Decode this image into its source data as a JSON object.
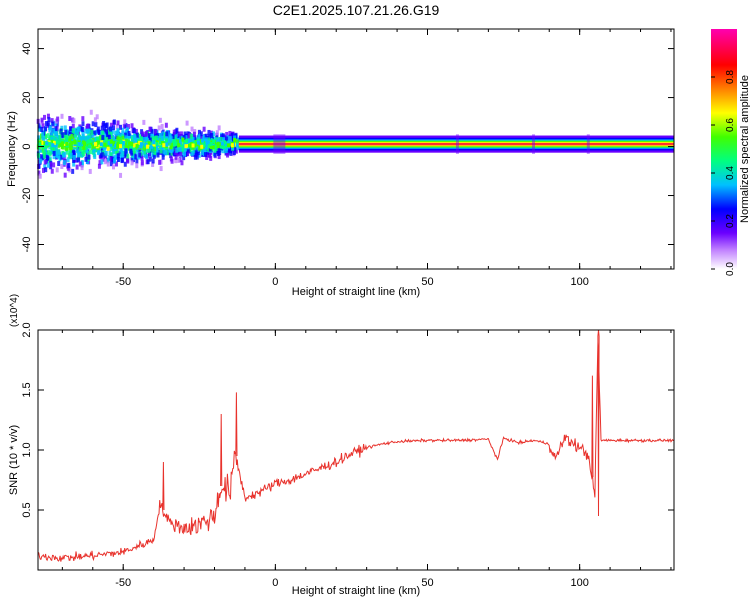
{
  "title": "C2E1.2025.107.21.26.G19",
  "colors": {
    "snr_line": "#e8322c",
    "tone_line": "#e03030",
    "axis": "#000000",
    "background": "#ffffff"
  },
  "chart_data": [
    {
      "type": "heatmap",
      "name": "spectrogram",
      "xlabel": "Height of straight line (km)",
      "ylabel": "Frequency (Hz)",
      "xlim": [
        -78,
        131
      ],
      "ylim": [
        -50,
        48
      ],
      "x_ticks": [
        -50,
        0,
        50,
        100
      ],
      "y_ticks": [
        -40,
        -20,
        0,
        20,
        40
      ],
      "x_tick_labels": [
        "-50",
        "0",
        "50",
        "100"
      ],
      "y_tick_labels": [
        "-40",
        "-20",
        "0",
        "20",
        "40"
      ],
      "tone_frequency_hz": 1,
      "tone_segments": [
        [
          -12,
          131
        ]
      ],
      "scatter_region_km": [
        -78,
        -12
      ],
      "colorbar": {
        "label": "Normalized spectral amplitude",
        "range": [
          0,
          1
        ],
        "ticks": [
          0.0,
          0.2,
          0.4,
          0.6,
          0.8
        ],
        "tick_labels": [
          "0.0",
          "0.2",
          "0.4",
          "0.6",
          "0.8"
        ],
        "colormap": [
          "#ffffff",
          "#c080ff",
          "#6a00ff",
          "#0000ff",
          "#00c0ff",
          "#00ff80",
          "#40ff00",
          "#ffff00",
          "#ff8000",
          "#ff0000",
          "#ff00b0"
        ]
      }
    },
    {
      "type": "line",
      "name": "snr",
      "xlabel": "Height of straight line (km)",
      "ylabel": "SNR (10 * v/v)",
      "y_multiplier": "(x10^4)",
      "xlim": [
        -78,
        131
      ],
      "ylim": [
        0,
        2.0
      ],
      "x_ticks": [
        -50,
        0,
        50,
        100
      ],
      "y_ticks": [
        0.5,
        1.0,
        1.5,
        2.0
      ],
      "x_tick_labels": [
        "-50",
        "0",
        "50",
        "100"
      ],
      "y_tick_labels": [
        "0.5",
        "1.0",
        "1.5",
        "2.0"
      ],
      "x": [
        -78,
        -70,
        -60,
        -50,
        -45,
        -40,
        -38,
        -35,
        -30,
        -25,
        -20,
        -18,
        -15,
        -13,
        -10,
        -5,
        0,
        5,
        10,
        15,
        20,
        25,
        30,
        35,
        40,
        50,
        60,
        70,
        73,
        75,
        80,
        85,
        90,
        92,
        95,
        100,
        103,
        105,
        106,
        107,
        110,
        120,
        131
      ],
      "y": [
        0.12,
        0.1,
        0.12,
        0.15,
        0.2,
        0.25,
        0.55,
        0.4,
        0.35,
        0.38,
        0.45,
        0.7,
        0.65,
        0.95,
        0.6,
        0.65,
        0.72,
        0.75,
        0.8,
        0.85,
        0.9,
        0.97,
        1.02,
        1.05,
        1.07,
        1.08,
        1.08,
        1.09,
        0.92,
        1.1,
        1.06,
        1.08,
        1.05,
        0.92,
        1.1,
        1.02,
        0.95,
        0.6,
        1.95,
        1.08,
        1.08,
        1.08,
        1.08
      ],
      "peaks": [
        {
          "x": -13,
          "y": 1.48
        },
        {
          "x": -18,
          "y": 1.3
        },
        {
          "x": -37,
          "y": 0.9
        },
        {
          "x": 104,
          "y": 1.62
        },
        {
          "x": 106,
          "y": 2.0
        },
        {
          "x": 106,
          "y": 0.45
        }
      ]
    }
  ]
}
